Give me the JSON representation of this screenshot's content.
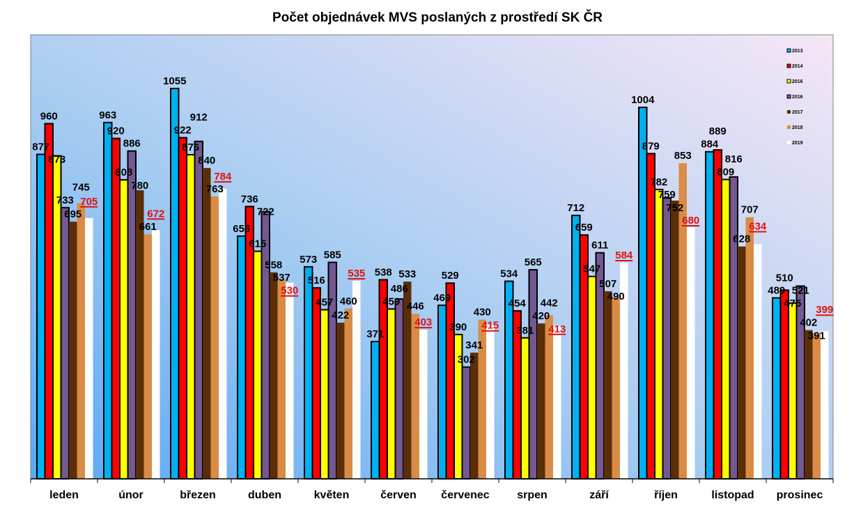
{
  "chart_data": {
    "type": "bar",
    "title": "Počet objednávek MVS poslaných z prostředí SK ČR",
    "xlabel": "",
    "ylabel": "",
    "ylim": [
      0,
      1200
    ],
    "grid": false,
    "legend_position": "top-right",
    "categories": [
      "leden",
      "únor",
      "březen",
      "duben",
      "květen",
      "červen",
      "červenec",
      "srpen",
      "září",
      "říjen",
      "listopad",
      "prosinec"
    ],
    "series": [
      {
        "name": "2013",
        "color": "#00b0f0",
        "values": [
          877,
          963,
          1055,
          656,
          573,
          371,
          469,
          534,
          712,
          1004,
          884,
          489
        ]
      },
      {
        "name": "2014",
        "color": "#ff0000",
        "values": [
          960,
          920,
          922,
          736,
          516,
          538,
          529,
          454,
          659,
          879,
          889,
          510
        ]
      },
      {
        "name": "2016",
        "color": "#ffff00",
        "values": [
          873,
          808,
          876,
          615,
          457,
          459,
          390,
          381,
          547,
          782,
          809,
          475
        ]
      },
      {
        "name": "2016",
        "color": "#735892",
        "values": [
          733,
          886,
          912,
          722,
          585,
          486,
          302,
          565,
          611,
          759,
          816,
          521
        ]
      },
      {
        "name": "2017",
        "color": "#5a2e08",
        "values": [
          695,
          780,
          840,
          558,
          422,
          533,
          341,
          420,
          507,
          752,
          628,
          402
        ]
      },
      {
        "name": "2018",
        "color": "#d98c45",
        "values": [
          745,
          661,
          763,
          537,
          460,
          446,
          430,
          442,
          490,
          853,
          707,
          391
        ]
      },
      {
        "name": "2019",
        "color": "#ffffff",
        "values": [
          705,
          672,
          784,
          530,
          535,
          403,
          415,
          413,
          584,
          680,
          634,
          399
        ]
      }
    ]
  }
}
